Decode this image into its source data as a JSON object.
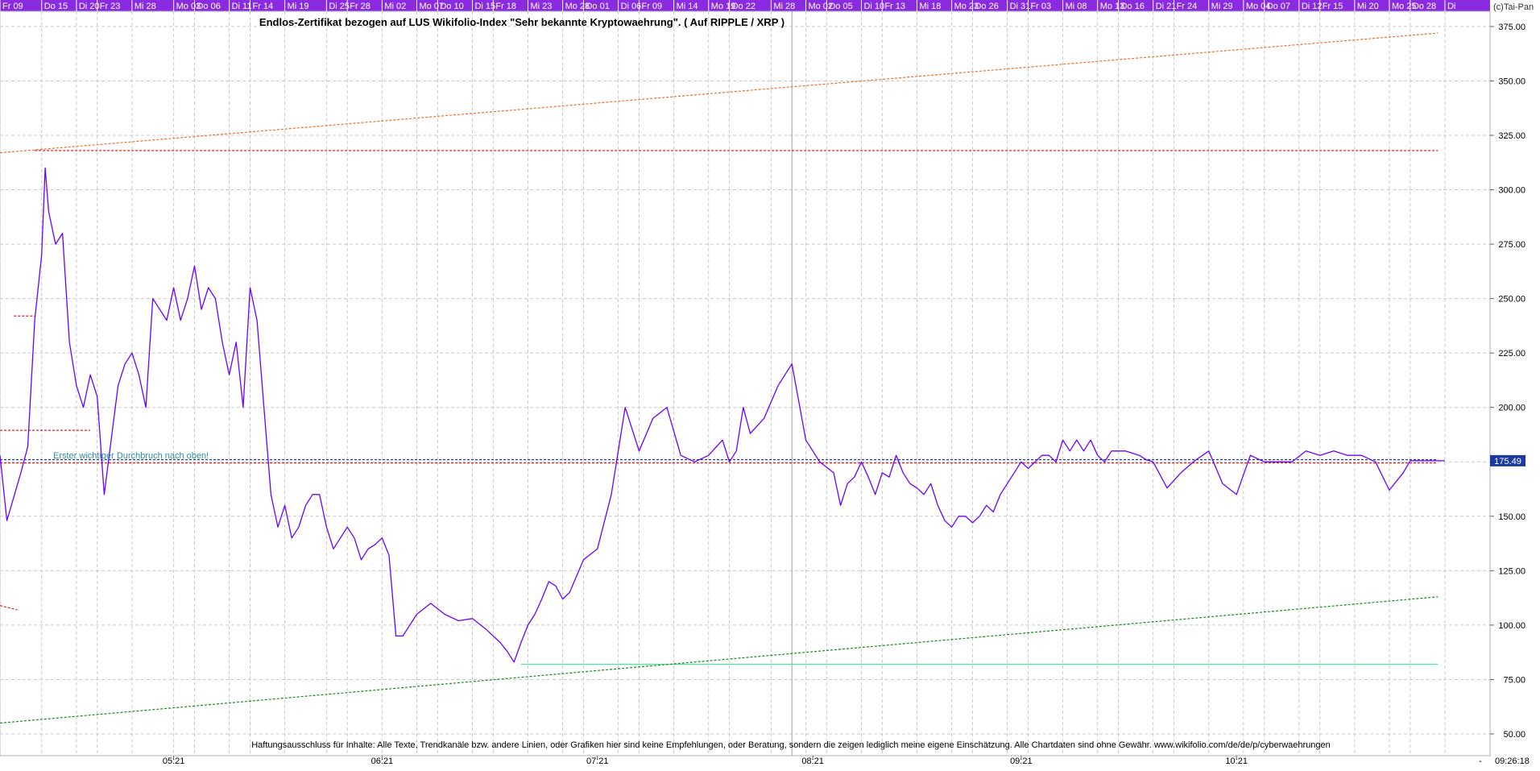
{
  "chart_data": {
    "type": "line",
    "title": "Endlos-Zertifikat bezogen auf LUS Wikifolio-Index \"Sehr bekannte Kryptowaehrung\". ( Auf RIPPLE / XRP )",
    "copyright": "(c)Tai-Pan",
    "disclaimer": "Haftungsausschluss für Inhalte: Alle Texte, Trendkanäle bzw. andere Linien, oder Grafiken hier sind keine Empfehlungen, oder Beratung, sondern die zeigen lediglich meine eigene Einschätzung. Alle Chartdaten sind ohne Gewähr.  www.wikifolio.com/de/de/p/cyberwaehrungen",
    "annotation": "Erster wichtiger Durchbruch nach oben!",
    "last_price_label": "175.49",
    "timestamp": "09:26:18",
    "corner_mark": "-",
    "y_ticks": [
      50,
      75,
      100,
      125,
      150,
      175,
      200,
      225,
      250,
      275,
      300,
      325,
      350,
      375
    ],
    "y_tick_labels": [
      "50.00",
      "75.00",
      "100.00",
      "125.00",
      "150.00",
      "175.00",
      "200.00",
      "225.00",
      "250.00",
      "275.00",
      "300.00",
      "325.00",
      "350.00",
      "375.00"
    ],
    "ylim": [
      40,
      382
    ],
    "x_range_days": [
      0,
      214.5
    ],
    "top_date_labels": [
      "Fr 09",
      "Do 15",
      "Di 20",
      "Fr 23",
      "Mi 28",
      "Mo 03",
      "Do 06",
      "Di 11",
      "Fr 14",
      "Mi 19",
      "Di 25",
      "Fr 28",
      "Mi 02",
      "Mo 07",
      "Do 10",
      "Di 15",
      "Fr 18",
      "Mi 23",
      "Mo 28",
      "Do 01",
      "Di 06",
      "Fr 09",
      "Mi 14",
      "Mo 19",
      "Do 22",
      "Mi 28",
      "Mo 02",
      "Do 05",
      "Di 10",
      "Fr 13",
      "Mi 18",
      "Mo 23",
      "Do 26",
      "Di 31",
      "Fr 03",
      "Mi 08",
      "Mo 13",
      "Do 16",
      "Di 21",
      "Fr 24",
      "Mi 29",
      "Mo 04",
      "Do 07",
      "Di 12",
      "Fr 15",
      "Mi 20",
      "Mo 25",
      "Do 28",
      "Di"
    ],
    "top_date_days": [
      0,
      6,
      11,
      14,
      19,
      25,
      28,
      33,
      36,
      41,
      47,
      50,
      55,
      60,
      63,
      68,
      71,
      76,
      81,
      84,
      89,
      92,
      97,
      102,
      105,
      111,
      116,
      119,
      124,
      127,
      132,
      137,
      140,
      145,
      148,
      153,
      158,
      161,
      166,
      169,
      174,
      179,
      182,
      187,
      190,
      195,
      200,
      203,
      208
    ],
    "month_labels": [
      "05:21",
      "06:21",
      "07:21",
      "08:21",
      "09:21",
      "10:21"
    ],
    "month_label_days": [
      25,
      55,
      86,
      117,
      147,
      178
    ],
    "month_boundary_days": [
      114
    ],
    "price_series": {
      "color": "#6a00ff",
      "days": [
        0,
        1,
        3,
        4,
        5,
        6,
        6.5,
        7,
        8,
        9,
        10,
        11,
        12,
        13,
        14,
        15,
        16,
        17,
        18,
        19,
        20,
        21,
        22,
        23,
        24,
        25,
        26,
        27,
        28,
        29,
        30,
        31,
        32,
        33,
        34,
        35,
        36,
        37,
        38,
        39,
        40,
        41,
        42,
        43,
        44,
        45,
        46,
        47,
        48,
        49,
        50,
        51,
        52,
        53,
        54,
        55,
        56,
        57,
        58,
        60,
        62,
        64,
        66,
        68,
        70,
        72,
        73,
        74,
        75,
        76,
        77,
        78,
        79,
        80,
        81,
        82,
        84,
        86,
        88,
        90,
        92,
        94,
        96,
        98,
        100,
        102,
        104,
        105,
        106,
        107,
        108,
        110,
        112,
        114,
        116,
        118,
        120,
        121,
        122,
        123,
        124,
        125,
        126,
        127,
        128,
        129,
        130,
        131,
        132,
        133,
        134,
        135,
        136,
        137,
        138,
        139,
        140,
        141,
        142,
        143,
        144,
        145,
        146,
        147,
        148,
        149,
        150,
        151,
        152,
        153,
        154,
        155,
        156,
        157,
        158,
        159,
        160,
        162,
        164,
        165,
        166,
        168,
        170,
        172,
        174,
        176,
        178,
        180,
        182,
        184,
        186,
        188,
        190,
        192,
        194,
        196,
        198,
        200,
        202,
        203,
        204,
        206,
        208
      ],
      "values": [
        178,
        148,
        170,
        182,
        240,
        270,
        310,
        290,
        275,
        280,
        230,
        210,
        200,
        215,
        205,
        160,
        185,
        210,
        220,
        225,
        215,
        200,
        250,
        245,
        240,
        255,
        240,
        250,
        265,
        245,
        255,
        250,
        230,
        215,
        230,
        200,
        255,
        240,
        200,
        160,
        145,
        155,
        140,
        145,
        155,
        160,
        160,
        145,
        135,
        140,
        145,
        140,
        130,
        135,
        137,
        140,
        132,
        95,
        95,
        105,
        110,
        105,
        102,
        103,
        98,
        92,
        88,
        83,
        92,
        100,
        105,
        112,
        120,
        118,
        112,
        115,
        130,
        135,
        160,
        200,
        180,
        195,
        200,
        178,
        175,
        178,
        185,
        175,
        180,
        200,
        188,
        195,
        210,
        220,
        185,
        175,
        170,
        155,
        165,
        168,
        175,
        168,
        160,
        170,
        168,
        178,
        170,
        165,
        163,
        160,
        165,
        155,
        148,
        145,
        150,
        150,
        147,
        150,
        155,
        152,
        160,
        165,
        170,
        175,
        172,
        175,
        178,
        178,
        175,
        185,
        180,
        185,
        180,
        185,
        178,
        175,
        180,
        180,
        178,
        176,
        175,
        163,
        170,
        175.5,
        180,
        165,
        160,
        178,
        175,
        175,
        175,
        180,
        178,
        180,
        178,
        178,
        175,
        162,
        170,
        175.49,
        175.49,
        175.49,
        175.49
      ]
    },
    "lines": [
      {
        "id": "upper-trend",
        "color": "#e8702a",
        "style": "dotted",
        "points": [
          [
            0,
            317
          ],
          [
            207,
            372
          ]
        ]
      },
      {
        "id": "high-level",
        "color": "#e02020",
        "style": "dotted",
        "points": [
          [
            5,
            318
          ],
          [
            207,
            318
          ]
        ]
      },
      {
        "id": "short-level-242",
        "color": "#e02020",
        "style": "dotted",
        "points": [
          [
            2,
            242
          ],
          [
            5,
            242
          ]
        ]
      },
      {
        "id": "short-level-189",
        "color": "#e02020",
        "style": "dotted",
        "points": [
          [
            0,
            189.5
          ],
          [
            13,
            189.5
          ]
        ]
      },
      {
        "id": "short-level-108",
        "color": "#e02020",
        "style": "dotted",
        "points": [
          [
            0,
            109
          ],
          [
            2.5,
            107
          ]
        ]
      },
      {
        "id": "breakout-level",
        "color": "#e02020",
        "style": "dotted",
        "points": [
          [
            0,
            174.5
          ],
          [
            207,
            174.5
          ]
        ]
      },
      {
        "id": "current-price",
        "color": "#1a2aa0",
        "style": "dotted",
        "points": [
          [
            0,
            176
          ],
          [
            207,
            176
          ]
        ]
      },
      {
        "id": "support-low",
        "color": "#50e0a0",
        "style": "solid",
        "points": [
          [
            75,
            82
          ],
          [
            207,
            82
          ]
        ]
      },
      {
        "id": "lower-trend",
        "color": "#1a8a1a",
        "style": "dotted",
        "points": [
          [
            0,
            55
          ],
          [
            207,
            113
          ]
        ]
      }
    ]
  },
  "colors": {
    "top_bar_bg": "#8a2be2",
    "top_bar_text": "#ffffff",
    "grid": "#c8c8c8",
    "price_tag_bg": "#1a3aa0",
    "annotation": "#2a90a0"
  }
}
